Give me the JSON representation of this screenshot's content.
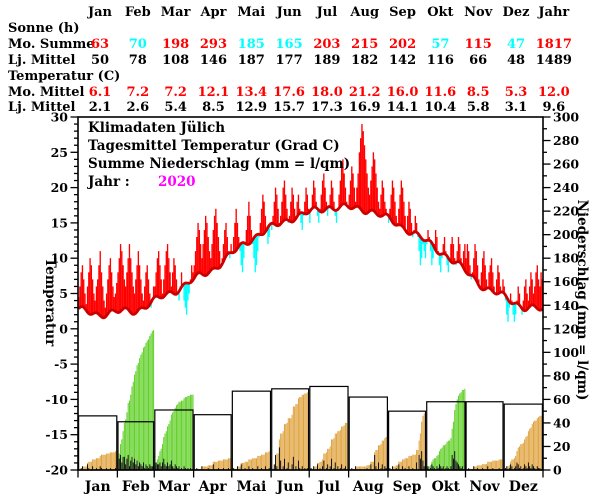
{
  "legend": {
    "line1": "Klimadaten Jülich",
    "line2": "Tagesmittel Temperatur (Grad C)",
    "line3": "Summe Niederschlag (mm = l/qm)",
    "jahr_label": "Jahr :",
    "jahr_value": "2020"
  },
  "table": {
    "months": [
      "Jan",
      "Feb",
      "Mar",
      "Apr",
      "Mai",
      "Jun",
      "Jul",
      "Aug",
      "Sep",
      "Okt",
      "Nov",
      "Dez",
      "Jahr"
    ],
    "sections": [
      {
        "heading": "Sonne (h)",
        "rows": [
          {
            "label": "Mo. Summe",
            "values": [
              "63",
              "70",
              "198",
              "293",
              "185",
              "165",
              "203",
              "215",
              "202",
              "57",
              "115",
              "47",
              "1817"
            ],
            "highlight": true
          },
          {
            "label": "Lj. Mittel",
            "values": [
              "50",
              "78",
              "108",
              "146",
              "187",
              "177",
              "189",
              "182",
              "142",
              "116",
              "66",
              "48",
              "1489"
            ],
            "highlight": false
          }
        ]
      },
      {
        "heading": "Temperatur (C)",
        "rows": [
          {
            "label": "Mo. Mittel",
            "values": [
              "6.1",
              "7.2",
              "7.2",
              "12.1",
              "13.4",
              "17.6",
              "18.0",
              "21.2",
              "16.0",
              "11.6",
              "8.5",
              "5.3",
              "12.0"
            ],
            "highlight": true
          },
          {
            "label": "Lj. Mittel",
            "values": [
              "2.1",
              "2.6",
              "5.4",
              "8.5",
              "12.9",
              "15.7",
              "17.3",
              "16.9",
              "14.1",
              "10.4",
              "5.8",
              "3.1",
              "9.6"
            ],
            "highlight": false
          }
        ]
      }
    ]
  },
  "chart_data": {
    "type": "composite",
    "title": "Klimadaten Jülich",
    "subtitle": "Tagesmittel Temperatur (Grad C) / Summe Niederschlag (mm = l/qm)",
    "year": "2020",
    "x_months": [
      "Jan",
      "Feb",
      "Mar",
      "Apr",
      "Mai",
      "Jun",
      "Jul",
      "Aug",
      "Sep",
      "Okt",
      "Nov",
      "Dez"
    ],
    "days_per_month": [
      31,
      29,
      31,
      30,
      31,
      30,
      31,
      31,
      30,
      31,
      30,
      31
    ],
    "temp_axis": {
      "label": "Temperatur",
      "min": -20,
      "max": 30,
      "tick_step": 5,
      "minor_step": 1
    },
    "precip_axis": {
      "label": "Niederschlag (mm = l/qm)",
      "min": 0,
      "max": 300,
      "tick_step": 20,
      "minor_step": 10
    },
    "climatology_monthly_temp": [
      2.1,
      2.6,
      5.4,
      8.5,
      12.9,
      15.7,
      17.3,
      16.9,
      14.1,
      10.4,
      5.8,
      3.1
    ],
    "monthly_temp_2020": [
      6.1,
      7.2,
      7.2,
      12.1,
      13.4,
      17.6,
      18.0,
      21.2,
      16.0,
      11.6,
      8.5,
      5.3
    ],
    "monthly_precip_2020": [
      16,
      119,
      64,
      10,
      16,
      66,
      40,
      28,
      49,
      69,
      9,
      47
    ],
    "monthly_precip_longterm": [
      46,
      41,
      51,
      47,
      67,
      69,
      71,
      62,
      50,
      58,
      58,
      56
    ],
    "daily_temp_2020": [
      4.5,
      6,
      8,
      9,
      7,
      5,
      3.5,
      6,
      8,
      10,
      9,
      7,
      5,
      4,
      6,
      7,
      9,
      11,
      8,
      6,
      4,
      3,
      5,
      7,
      9,
      10,
      8,
      6,
      4.5,
      5,
      6.5,
      8,
      10,
      12,
      11,
      9,
      7,
      6,
      8,
      10,
      12,
      10,
      8,
      6,
      5,
      7,
      9,
      11,
      9,
      7,
      5,
      4,
      6,
      8,
      9,
      7,
      5,
      3,
      4,
      6,
      6,
      8,
      10,
      11,
      9,
      7,
      5,
      7,
      9,
      11,
      12,
      10,
      8,
      6,
      8,
      10,
      9,
      7,
      5,
      4,
      6,
      8,
      6,
      4,
      3,
      2,
      4,
      5,
      7,
      9,
      8,
      9,
      11,
      13,
      15,
      14,
      12,
      10,
      12,
      14,
      16,
      15,
      13,
      11,
      10,
      12,
      14,
      16,
      17,
      15,
      13,
      11,
      9,
      10,
      12,
      14,
      15,
      13,
      11,
      10,
      12,
      11,
      13,
      15,
      17,
      15,
      13,
      11,
      9,
      8,
      10,
      12,
      14,
      16,
      18,
      16,
      14,
      12,
      10,
      8,
      9,
      11,
      13,
      15,
      17,
      19,
      18,
      16,
      14,
      12,
      13,
      15,
      14,
      16,
      18,
      20,
      19,
      17,
      15,
      16,
      18,
      20,
      21,
      19,
      17,
      15,
      16,
      18,
      20,
      19,
      17,
      16,
      18,
      19,
      17,
      15,
      14,
      16,
      18,
      20,
      19,
      17,
      15,
      17,
      19,
      21,
      20,
      18,
      16,
      15,
      17,
      19,
      21,
      22,
      20,
      18,
      16,
      17,
      19,
      21,
      20,
      18,
      16,
      15,
      17,
      19,
      21,
      23,
      24,
      22,
      20,
      18,
      17,
      19,
      21,
      23,
      22,
      20,
      18,
      20,
      22,
      25,
      27,
      29,
      28,
      26,
      24,
      22,
      20,
      19,
      21,
      23,
      25,
      24,
      22,
      20,
      18,
      17,
      19,
      21,
      20,
      18,
      17,
      16,
      15,
      17,
      19,
      21,
      20,
      18,
      16,
      15,
      17,
      19,
      21,
      20,
      18,
      16,
      14,
      16,
      18,
      17,
      15,
      13,
      14,
      16,
      15,
      13,
      11,
      9,
      10,
      12,
      11,
      10,
      12,
      14,
      13,
      11,
      9,
      10,
      12,
      14,
      13,
      11,
      9,
      8,
      10,
      12,
      13,
      11,
      9,
      8,
      10,
      12,
      13,
      12,
      10,
      9,
      11,
      13,
      12,
      10,
      9,
      11,
      12,
      10,
      12,
      11,
      9,
      7,
      8,
      10,
      12,
      11,
      9,
      7,
      6,
      8,
      10,
      11,
      9,
      7,
      6,
      8,
      9,
      10,
      8,
      6,
      5,
      7,
      9,
      8,
      6,
      5,
      7,
      6,
      4,
      2,
      1,
      3,
      5,
      4,
      2,
      1,
      2,
      4,
      6,
      5,
      3,
      2,
      4,
      6,
      7,
      5,
      4,
      6,
      8,
      7,
      5,
      6,
      8,
      9,
      7,
      6,
      8,
      7
    ],
    "daily_precip_2020": [
      0,
      0,
      1,
      2,
      0,
      0,
      0,
      3,
      1,
      0,
      0,
      2,
      0,
      0,
      1,
      0,
      0,
      2,
      1,
      0,
      0,
      0,
      1,
      0,
      0,
      1,
      0,
      0,
      0,
      1,
      0,
      8,
      6,
      8,
      4,
      7,
      7,
      3,
      6,
      8,
      2,
      5,
      7,
      4,
      6,
      3,
      5,
      2,
      4,
      3,
      2,
      4,
      1,
      3,
      2,
      1,
      3,
      2,
      2,
      1,
      2,
      4,
      3,
      3,
      4,
      2,
      4,
      6,
      3,
      2,
      4,
      2,
      3,
      5,
      2,
      1,
      3,
      2,
      1,
      2,
      0,
      1,
      0,
      2,
      1,
      0,
      1,
      0,
      1,
      0,
      0,
      0,
      0,
      1,
      0,
      0,
      0,
      2,
      0,
      0,
      0,
      0,
      1,
      0,
      0,
      0,
      3,
      0,
      0,
      0,
      1,
      0,
      0,
      0,
      1,
      0,
      0,
      0,
      1,
      0,
      0,
      0,
      1,
      0,
      0,
      2,
      0,
      0,
      3,
      0,
      0,
      1,
      0,
      0,
      2,
      0,
      0,
      1,
      0,
      0,
      0,
      2,
      0,
      0,
      1,
      0,
      0,
      2,
      0,
      0,
      1,
      0,
      1,
      0,
      3,
      8,
      2,
      0,
      12,
      5,
      0,
      2,
      6,
      0,
      1,
      4,
      0,
      0,
      3,
      7,
      0,
      2,
      0,
      5,
      1,
      0,
      2,
      0,
      1,
      0,
      1,
      0,
      0,
      1,
      0,
      2,
      0,
      0,
      3,
      0,
      1,
      0,
      2,
      5,
      0,
      1,
      3,
      0,
      2,
      6,
      0,
      1,
      4,
      0,
      2,
      0,
      1,
      3,
      0,
      1,
      2,
      0,
      0,
      0,
      0,
      1,
      0,
      0,
      2,
      0,
      0,
      0,
      0,
      0,
      0,
      0,
      0,
      1,
      0,
      0,
      3,
      0,
      0,
      8,
      2,
      0,
      4,
      0,
      1,
      3,
      0,
      2,
      1,
      0,
      0,
      1,
      0,
      2,
      0,
      0,
      1,
      0,
      3,
      0,
      0,
      2,
      0,
      1,
      0,
      0,
      2,
      0,
      0,
      1,
      0,
      0,
      4,
      0,
      8,
      6,
      10,
      5,
      2,
      1,
      1,
      2,
      0,
      1,
      3,
      2,
      1,
      0,
      2,
      1,
      3,
      2,
      1,
      2,
      0,
      1,
      2,
      1,
      0,
      2,
      8,
      6,
      10,
      5,
      4,
      3,
      2,
      1,
      2,
      0,
      1,
      0,
      0,
      1,
      0,
      0,
      0,
      2,
      0,
      0,
      1,
      0,
      0,
      0,
      1,
      0,
      0,
      0,
      2,
      0,
      0,
      0,
      1,
      0,
      0,
      0,
      0,
      1,
      0,
      0,
      0,
      0,
      1,
      2,
      0,
      1,
      3,
      2,
      0,
      1,
      2,
      4,
      3,
      1,
      2,
      0,
      1,
      3,
      2,
      1,
      4,
      2,
      1,
      3,
      2,
      1,
      0,
      2,
      1,
      1,
      0,
      1
    ],
    "colors": {
      "above_mean": "#ff0000",
      "below_mean": "#00ffff",
      "mean_curve": "#cc0000",
      "precip_cum_above": "#5ecf25",
      "precip_cum_below": "#dfa23c",
      "daily_precip": "#000000",
      "year_value": "#ff00ff",
      "axis": "#000000"
    }
  }
}
